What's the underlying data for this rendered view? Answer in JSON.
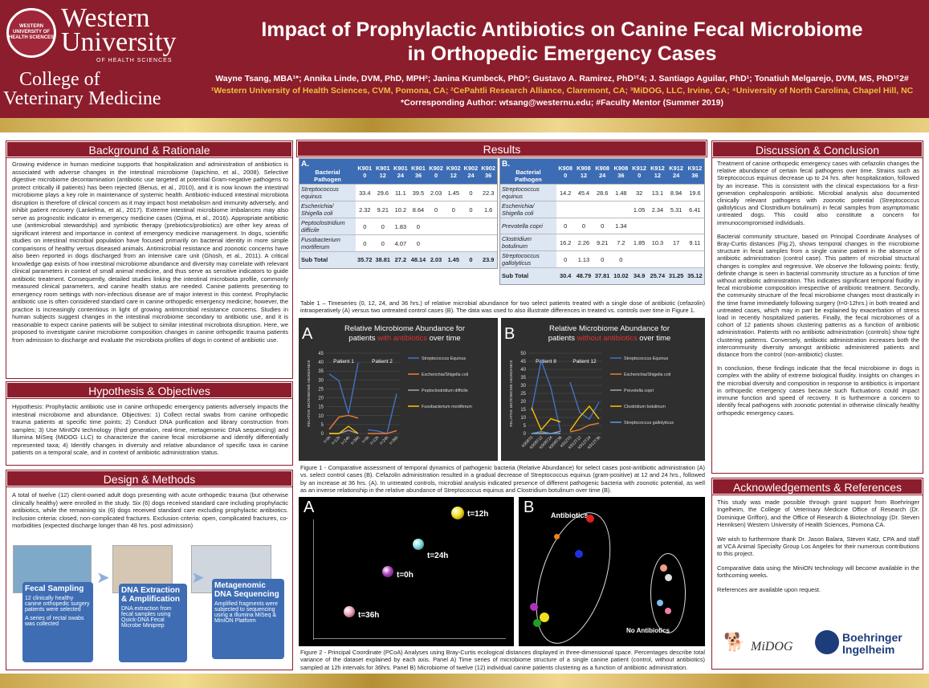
{
  "header": {
    "seal_text": "WESTERN UNIVERSITY OF HEALTH SCIENCES",
    "wu_line1": "Western",
    "wu_line2": "University",
    "wu_line3": "OF HEALTH SCIENCES",
    "cvm_line1": "College of",
    "cvm_line2": "Veterinary Medicine",
    "title_line1": "Impact of Prophylactic Antibiotics on Canine Fecal Microbiome",
    "title_line2": "in Orthopedic Emergency Cases",
    "authors": "Wayne Tsang, MBA¹*; Annika Linde, DVM, PhD, MPH²; Janina Krumbeck, PhD³; Gustavo A. Ramirez, PhD¹ˁ4; J. Santiago Aguilar, PhD¹; Tonatiuh Melgarejo, DVM, MS, PhD¹ˁ2#",
    "affiliations": "¹Western University of Health Sciences, CVM, Pomona, CA; ²CePahtli Research Alliance, Claremont, CA; ³MiDOG, LLC, Irvine, CA; ⁴University of North Carolina, Chapel Hill, NC",
    "correspondence": "*Corresponding Author: wtsang@westernu.edu; #Faculty Mentor (Summer 2019)"
  },
  "background": {
    "heading": "Background & Rationale",
    "text": "Growing evidence in human medicine supports that hospitalization and administration of antibiotics is associated with adverse changes in the intestinal microbiome (Iapichino, et al., 2008). Selective digestive microbiome decontamination (antibiotic use targeted at potential Gram-negative pathogens to protect critically ill patients) has been rejected (Benus, et al., 2010), and it is now known the intestinal microbiome plays a key role in maintenance of systemic health. Antibiotic-induced intestinal microbiota disruption is therefore of clinical concern as it may impact host metabolism and immunity adversely, and inhibit patient recovery (Lankelma, et al., 2017). Extreme intestinal microbiome imbalances may also serve as prognostic indicator in emergency medicine cases (Ojima, et al., 2016). Appropriate antibiotic use (antimicrobial stewardship) and symbiotic therapy (prebiotics/probiotics) are other key areas of significant interest and importance in context of emergency medicine management. In dogs, scientific studies on intestinal microbial population have focused primarily on bacterial identity in more simple comparisons of healthy versus diseased animals. Antimicrobial resistance and zoonotic concerns have also been reported in dogs discharged from an intensive care unit (Ghosh, et al., 2011). A critical knowledge gap exists of how intestinal microbiome abundance and diversity may correlate with relevant clinical parameters in context of small animal medicine, and thus serve as sensitive indicators to guide antibiotic treatment. Consequently, detailed studies linking the intestinal microbiota profile, commonly measured clinical parameters, and canine health status are needed. Canine patients presenting to emergency room settings with non-infectious disease are of major interest in this context. Prophylactic antibiotic use is often considered standard care in canine orthopedic emergency medicine; however, the practice is increasingly contentious in light of growing antimicrobial resistance concerns. Studies in human subjects suggest changes in the intestinal microbiome secondary to antibiotic use, and it is reasonable to expect canine patients will be subject to similar intestinal microbiota disruption. Here, we proposed to investigate canine microbiome composition changes in canine orthopedic trauma patients from admission to discharge and evaluate the microbiota profiles of dogs in context of antibiotic use."
  },
  "hypothesis": {
    "heading": "Hypothesis & Objectives",
    "text": "Hypothesis: Prophylactic antibiotic use in canine orthopedic emergency patients adversely impacts the intestinal microbiome and abundance. Objectives: 1) Collect rectal swabs from canine orthopedic trauma patients at specific time points; 2) Conduct DNA purification and library construction from samples; 3) Use MinION technology (third generation, real-time, metagenomic DNA sequencing) and Illumina MiSeq (MiDOG LLC) to characterize the canine fecal microbiome and identify differentially represented taxa; 4) Identify changes in diversity and relative abundance of specific taxa in canine patients on a temporal scale, and in context of antibiotic administration status."
  },
  "design": {
    "heading": "Design & Methods",
    "text": "A total of twelve (12) client-owned adult dogs presenting with acute orthopedic trauma (but otherwise clinically healthy) were enrolled in the study. Six (6) dogs received standard care including prophylactic antibiotics, while the remaining six (6) dogs received standard care excluding prophylactic antibiotics. Inclusion criteria: closed, non-complicated fractures. Exclusion criteria: open, complicated fractures, co-morbidities (expected discharge longer than 48 hrs. post admission)",
    "steps": [
      {
        "title": "Fecal Sampling",
        "b1": "12 clinically healthy canine orthopedic surgery patients were selected",
        "b2": "A series of rectal swabs was collected"
      },
      {
        "title": "DNA Extraction & Amplification",
        "b1": "DNA extraction from fecal samples using Quick-DNA Fecal Microbe Miniprep",
        "b2": ""
      },
      {
        "title": "Metagenomic DNA Sequencing",
        "b1": "Amplified fragments were subjected to sequencing using a Illumina MiSeq & MinION Platform",
        "b2": ""
      }
    ]
  },
  "results": {
    "heading": "Results",
    "tableA": {
      "label": "A.",
      "headers": [
        "Bacterial Pathogen",
        "K901 0",
        "K901 12",
        "K901 24",
        "K901 36",
        "K902 0",
        "K902 12",
        "K902 24",
        "K902 36"
      ],
      "rows": [
        [
          "Streptococcus equinus",
          "33.4",
          "29.6",
          "11.1",
          "39.5",
          "2.03",
          "1.45",
          "0",
          "22.3"
        ],
        [
          "Escherichia/ Shigella coli",
          "2.32",
          "9.21",
          "10.2",
          "8.64",
          "0",
          "0",
          "0",
          "1.6"
        ],
        [
          "Peptoclostridium difficile",
          "0",
          "0",
          "1.83",
          "0",
          "",
          "",
          "",
          ""
        ],
        [
          "Fusobacterium mortiferum",
          "0",
          "0",
          "4.07",
          "0",
          "",
          "",
          "",
          ""
        ]
      ],
      "subtotal": [
        "Sub Total",
        "35.72",
        "38.81",
        "27.2",
        "48.14",
        "2.03",
        "1.45",
        "0",
        "23.9"
      ]
    },
    "tableB": {
      "label": "B.",
      "headers": [
        "Bacterial Pathogen",
        "K908 0",
        "K908 12",
        "K908 24",
        "K908 36",
        "K912 0",
        "K912 12",
        "K912 24",
        "K912 36"
      ],
      "rows": [
        [
          "Streptococcus equinus",
          "14.2",
          "45.4",
          "28.6",
          "1.48",
          "32",
          "13.1",
          "8.94",
          "19.6"
        ],
        [
          "Escherichia/ Shigella coli",
          "",
          "",
          "",
          "",
          "1.05",
          "2.34",
          "5.31",
          "6.41"
        ],
        [
          "Prevotella copri",
          "0",
          "0",
          "0",
          "1.34",
          "",
          "",
          "",
          ""
        ],
        [
          "Clostridium botulinum",
          "16.2",
          "2.26",
          "9.21",
          "7.2",
          "1.85",
          "10.3",
          "17",
          "9.11"
        ],
        [
          "Streptococcus gallolyticus",
          "0",
          "1.13",
          "0",
          "0",
          "",
          "",
          "",
          ""
        ]
      ],
      "subtotal": [
        "Sub Total",
        "30.4",
        "48.79",
        "37.81",
        "10.02",
        "34.9",
        "25.74",
        "31.25",
        "35.12"
      ]
    },
    "table_caption": "Table 1 – Timeseries (0, 12, 24, and 36 hrs.) of relative microbial abundance for two select patients treated with a single dose of antibiotic (cefazolin) intraoperatively (A) versus two untreated control cases (B). The data was used to also illustrate differences in treated vs. controls over time in Figure 1.",
    "figure1_caption": "Figure 1 - Comparative assessment of temporal dynamics of pathogenic bacteria (Relative Abundance) for select cases post-antibiotic administration (A) vs. select control cases (B). Cefazolin administration resulted in a gradual decrease of Streptococcus equinus (gram-positive) at 12 and 24 hrs., followed by an increase at 36 hrs. (A). In untreated controls, microbial analysis indicated presence of different pathogenic bacteria with zoonotic potential, as well as an inverse relationship in the relative abundance of Streptococcus equinus and Clostridium botulinum over time (B).",
    "figure2_caption": "Figure 2 - Principal Coordinate (PCoA) Analyses using Bray-Curtis ecological distances displayed in three-dimensional space. Percentages describe total variance of the dataset explained by each axis. Panel A) Time series of microbiome structure of a single canine patient (control, without antibiotics) sampled at 12h intervals for 36hrs. Panel B) Microbiome of twelve (12) individual canine patients clustering as a function of antibiotic administration.",
    "pcoa_A": {
      "label": "A",
      "points": [
        {
          "t": "t=12h",
          "color": "#f0e020"
        },
        {
          "t": "t=24h",
          "color": "#80e0e0"
        },
        {
          "t": "t=0h",
          "color": "#b040c0"
        },
        {
          "t": "t=36h",
          "color": "#f0a0c0"
        }
      ]
    },
    "pcoa_B": {
      "label": "B",
      "antibiotics": "Antibiotics",
      "no_antibiotics": "No Antibiotics"
    }
  },
  "chart_data": [
    {
      "type": "line",
      "panel": "A",
      "title_pre": "Relative Microbiome Abundance for",
      "title_mid_a": "patients ",
      "title_hl": "with antibiotics",
      "title_post": " over time",
      "ylabel": "RELATIVE MICROBIOME ABUNDANCE",
      "ylim": [
        0,
        45
      ],
      "yticks": [
        0,
        5,
        10,
        15,
        20,
        25,
        30,
        35,
        40,
        45
      ],
      "groups": [
        "Patient 1",
        "Patient 2"
      ],
      "categories": [
        "t=0h",
        "t=12h",
        "t=24h",
        "t=36h",
        "t=0h",
        "t=12h",
        "t=24h",
        "t=36h"
      ],
      "series": [
        {
          "name": "Streptococcus Equinus",
          "color": "#4472c4",
          "values": [
            33.4,
            29.6,
            11.1,
            39.5,
            2.03,
            1.45,
            0,
            22.3
          ]
        },
        {
          "name": "Escherichia/Shigella coli",
          "color": "#ed7d31",
          "values": [
            2.32,
            9.21,
            10.2,
            8.64,
            0,
            0,
            0,
            1.6
          ]
        },
        {
          "name": "Peptoclostridium difficile",
          "color": "#a5a5a5",
          "values": [
            0,
            0,
            1.83,
            0,
            null,
            null,
            null,
            null
          ]
        },
        {
          "name": "Fusobacterium mortiferum",
          "color": "#ffc000",
          "values": [
            0,
            0,
            4.07,
            0,
            null,
            null,
            null,
            null
          ]
        }
      ]
    },
    {
      "type": "line",
      "panel": "B",
      "title_pre": "Relative Microbiome Abundance for",
      "title_mid_a": "patients ",
      "title_hl": "without antibiotics",
      "title_post": " over time",
      "ylabel": "RELATIVE MICROBIOME ABUNDANCE",
      "ylim": [
        0,
        50
      ],
      "yticks": [
        0,
        5,
        10,
        15,
        20,
        25,
        30,
        35,
        40,
        45,
        50
      ],
      "groups": [
        "Patient 8",
        "Patient 12"
      ],
      "categories": [
        "K908T0",
        "K908T12",
        "K908T24",
        "K908T36",
        "K912T0",
        "K912T12",
        "K912T24",
        "K912T36"
      ],
      "series": [
        {
          "name": "Streptococcus Equinus",
          "color": "#4472c4",
          "values": [
            14.2,
            45.4,
            28.6,
            1.48,
            32,
            13.1,
            8.94,
            19.6
          ]
        },
        {
          "name": "Escherichia/Shigella coli",
          "color": "#ed7d31",
          "values": [
            null,
            null,
            null,
            null,
            1.05,
            2.34,
            5.31,
            6.41
          ]
        },
        {
          "name": "Prevotella copri",
          "color": "#a5a5a5",
          "values": [
            0,
            0,
            0,
            1.34,
            null,
            null,
            null,
            null
          ]
        },
        {
          "name": "Clostridium botulinum",
          "color": "#ffc000",
          "values": [
            16.2,
            2.26,
            9.21,
            7.2,
            1.85,
            10.3,
            17,
            9.11
          ]
        },
        {
          "name": "Streptococcus gallolyticus",
          "color": "#5b9bd5",
          "values": [
            0,
            1.13,
            0,
            0,
            null,
            null,
            null,
            null
          ]
        }
      ]
    }
  ],
  "discussion": {
    "heading": "Discussion & Conclusion",
    "p1": "Treatment of canine orthopedic emergency cases with cefazolin changes the relative abundance of certain fecal pathogens over time. Strains such as Streptococcus equinus decrease up to 24 hrs. after hospitalization, followed by an increase. This is consistent with the clinical expectations for a first-generation cephalosporin antibiotic. Microbial analysis also documented clinically relevant pathogens with zoonotic potential (Streptococcus gallolyticus and Clostridium botulinum) in fecal samples from asymptomatic untreated dogs. This could also constitute a concern for immunocompromised individuals.",
    "p2": "Bacterial community structure, based on Principal Coordinate Analyses of Bray-Curtis distances (Fig.2), shows temporal changes in the microbiome structure in fecal samples from a single canine patient in the absence of antibiotic administration (control case). This pattern of microbial structural changes is complex and regressive. We observe the following points: firstly, definite change is seen in bacterial community structure as a function of time without antibiotic administration. This indicates significant temporal fluidity in fecal microbiome composition irrespective of antibiotic treatment. Secondly, the community structure of the fecal microbiome changes most drastically in the time frame immediately following surgery (t=0-12hrs.) in both treated and untreated cases, which may in part be explained by exacerbation of stress load in recently hospitalized patients. Finally, the fecal microbiomes of a cohort of 12 patients shows clustering patterns as a function of antibiotic administration. Patients with no antibiotic administration (controls) show tight clustering patterns. Conversely, antibiotic administration increases both the intercommunity diversity amongst antibiotic administered patients and distance from the control (non-antibiotic) cluster.",
    "p3": "In conclusion, these findings indicate that the fecal microbiome in dogs is complex with the ability of extreme biological fluidity. Insights on changes in the microbial diversity and composition in response to antibiotics is important in orthopedic emergency cases because such fluctuations could impact immune function and speed of recovery. It is furthermore a concern to identify fecal pathogens with zoonotic potential in otherwise clinically healthy orthopedic emergency cases."
  },
  "acknowledgements": {
    "heading": "Acknowledgements & References",
    "p1": "This study was made possible through grant support from Boehringer Ingelheim, the College of Veterinary Medicine Office of Research (Dr. Dominique Griffon), and the Office of Research & Biotechnology (Dr. Steven Henriksen) Western University of Health Sciences, Pomona CA.",
    "p2": "We wish to furthermore thank Dr. Jason Balara, Steven Katz, CPA and staff at VCA Animal Specialty Group Los Angeles for their numerous contributions to this project.",
    "p3": "Comparative data using the MiniON technology will become available in the forthcoming weeks.",
    "p4": "References are available upon request.",
    "logo1": "MiDOG",
    "logo2a": "Boehringer",
    "logo2b": "Ingelheim"
  }
}
